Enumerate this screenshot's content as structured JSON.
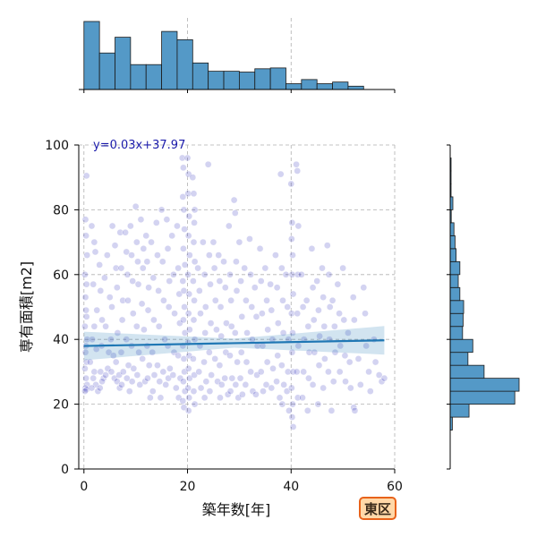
{
  "badge": {
    "text": "東区"
  },
  "colors": {
    "scatter": "#2222bb",
    "regression": "#1f77b4",
    "hist_fill": "#5499c7",
    "hist_edge": "#1a1a1a",
    "grid": "#b0b0b0",
    "badge_border": "#e8621a",
    "badge_fill": "#ffd8a8"
  },
  "chart_data": {
    "type": "scatter",
    "title": "",
    "xlabel": "築年数[年]",
    "ylabel": "専有面積[m2]",
    "xlim": [
      -1,
      60
    ],
    "ylim": [
      0,
      100
    ],
    "xticks": [
      0,
      20,
      40,
      60
    ],
    "yticks": [
      0,
      20,
      40,
      60,
      80,
      100
    ],
    "grid": true,
    "regression": {
      "label": "y=0.03x+37.97",
      "slope": 0.03,
      "intercept": 37.97,
      "x_range": [
        0,
        58
      ]
    },
    "x_hist": {
      "bin_edges": [
        0,
        3,
        6,
        9,
        12,
        15,
        18,
        21,
        24,
        27,
        30,
        33,
        36,
        39,
        42,
        45,
        48,
        51,
        54,
        57,
        60
      ],
      "counts": [
        82,
        44,
        63,
        30,
        30,
        70,
        60,
        32,
        22,
        22,
        21,
        25,
        26,
        7,
        12,
        7,
        9,
        4,
        0,
        0
      ]
    },
    "y_hist": {
      "bin_edges": [
        12,
        16,
        20,
        24,
        28,
        32,
        36,
        40,
        44,
        48,
        52,
        56,
        60,
        64,
        68,
        72,
        76,
        80,
        84,
        88,
        92,
        96
      ],
      "counts": [
        4,
        35,
        120,
        128,
        63,
        33,
        42,
        23,
        24,
        25,
        18,
        15,
        18,
        11,
        9,
        7,
        2,
        5,
        1,
        1,
        1,
        1
      ]
    },
    "points": [
      [
        0.5,
        90.5
      ],
      [
        0.3,
        77
      ],
      [
        0.4,
        72
      ],
      [
        0.6,
        66
      ],
      [
        0.2,
        60
      ],
      [
        0.5,
        57
      ],
      [
        0.3,
        53
      ],
      [
        0.4,
        49
      ],
      [
        0.5,
        47
      ],
      [
        0.2,
        44
      ],
      [
        0.6,
        40
      ],
      [
        0.4,
        38
      ],
      [
        0.3,
        36
      ],
      [
        0.5,
        33
      ],
      [
        0.2,
        31
      ],
      [
        0.4,
        28
      ],
      [
        0.6,
        26
      ],
      [
        0.3,
        25
      ],
      [
        0.5,
        24.5
      ],
      [
        0.2,
        24
      ],
      [
        1.5,
        75
      ],
      [
        2,
        70
      ],
      [
        2.2,
        67
      ],
      [
        1.8,
        57
      ],
      [
        2.5,
        49
      ],
      [
        2,
        44
      ],
      [
        1.6,
        40
      ],
      [
        2.4,
        37
      ],
      [
        1.2,
        33
      ],
      [
        2,
        30
      ],
      [
        1.8,
        28
      ],
      [
        2.3,
        26
      ],
      [
        1.5,
        25
      ],
      [
        2.7,
        24
      ],
      [
        3,
        63
      ],
      [
        3.2,
        55
      ],
      [
        3.5,
        46
      ],
      [
        3.4,
        38
      ],
      [
        3.2,
        30
      ],
      [
        3.8,
        28
      ],
      [
        3.5,
        27
      ],
      [
        3.1,
        25
      ],
      [
        4.5,
        66
      ],
      [
        4,
        59
      ],
      [
        4.2,
        44
      ],
      [
        4.8,
        36
      ],
      [
        4.6,
        31
      ],
      [
        4.2,
        29
      ],
      [
        5.5,
        75
      ],
      [
        5,
        53
      ],
      [
        5.4,
        50
      ],
      [
        5.2,
        40
      ],
      [
        5.7,
        35
      ],
      [
        5.3,
        30
      ],
      [
        5.9,
        28
      ],
      [
        6,
        69
      ],
      [
        6.2,
        62
      ],
      [
        6.4,
        56
      ],
      [
        6.5,
        42
      ],
      [
        6.2,
        33
      ],
      [
        6.8,
        29
      ],
      [
        6.4,
        27
      ],
      [
        6.9,
        25
      ],
      [
        7,
        73
      ],
      [
        7.2,
        62
      ],
      [
        7.5,
        52
      ],
      [
        7.4,
        46
      ],
      [
        7.2,
        36
      ],
      [
        7.6,
        30
      ],
      [
        7.3,
        26
      ],
      [
        8,
        73
      ],
      [
        8.2,
        67
      ],
      [
        8.4,
        60
      ],
      [
        8.5,
        52
      ],
      [
        8.2,
        40
      ],
      [
        8.6,
        32
      ],
      [
        8.3,
        28
      ],
      [
        8.8,
        24
      ],
      [
        9,
        75
      ],
      [
        9.2,
        66
      ],
      [
        9.4,
        58
      ],
      [
        9.5,
        48
      ],
      [
        9.2,
        38
      ],
      [
        9.6,
        31
      ],
      [
        9.3,
        27
      ],
      [
        10,
        81
      ],
      [
        10.2,
        70
      ],
      [
        10.4,
        64
      ],
      [
        10.5,
        57
      ],
      [
        10.2,
        44
      ],
      [
        10.6,
        36
      ],
      [
        10.3,
        29
      ],
      [
        10.8,
        26
      ],
      [
        11,
        77
      ],
      [
        11.5,
        68
      ],
      [
        11.4,
        62
      ],
      [
        11.2,
        51
      ],
      [
        11.6,
        43
      ],
      [
        11.3,
        34
      ],
      [
        11.8,
        27
      ],
      [
        12,
        72
      ],
      [
        12.2,
        64
      ],
      [
        12.5,
        56
      ],
      [
        12.4,
        49
      ],
      [
        12.2,
        38
      ],
      [
        12.6,
        32
      ],
      [
        12.3,
        28
      ],
      [
        12.8,
        22
      ],
      [
        13,
        70
      ],
      [
        13.4,
        59
      ],
      [
        13.5,
        46
      ],
      [
        13.2,
        36
      ],
      [
        13.6,
        29
      ],
      [
        13.3,
        24
      ],
      [
        14,
        76
      ],
      [
        14.2,
        66
      ],
      [
        14.4,
        55
      ],
      [
        14.5,
        44
      ],
      [
        14.2,
        32
      ],
      [
        14.6,
        27
      ],
      [
        14.8,
        22
      ],
      [
        15,
        80
      ],
      [
        15.2,
        64
      ],
      [
        15.4,
        52
      ],
      [
        15.6,
        40
      ],
      [
        15.3,
        30
      ],
      [
        15.8,
        26
      ],
      [
        16,
        77
      ],
      [
        16.2,
        68
      ],
      [
        16.5,
        58
      ],
      [
        16.4,
        50
      ],
      [
        16.2,
        38
      ],
      [
        16.6,
        31
      ],
      [
        16.3,
        28
      ],
      [
        17,
        72
      ],
      [
        17.3,
        60
      ],
      [
        17.5,
        48
      ],
      [
        17.4,
        36
      ],
      [
        17.2,
        29
      ],
      [
        17.8,
        25
      ],
      [
        18,
        75
      ],
      [
        18.2,
        62
      ],
      [
        18.4,
        54
      ],
      [
        18.5,
        45
      ],
      [
        18.2,
        35
      ],
      [
        18.6,
        28
      ],
      [
        18.3,
        22
      ],
      [
        19,
        96
      ],
      [
        19.2,
        93
      ],
      [
        19.1,
        84
      ],
      [
        19.3,
        80
      ],
      [
        19.4,
        74
      ],
      [
        19.2,
        68
      ],
      [
        19.5,
        63
      ],
      [
        19.1,
        58
      ],
      [
        19.3,
        55
      ],
      [
        19.4,
        50
      ],
      [
        19.2,
        46
      ],
      [
        19.5,
        42
      ],
      [
        19.1,
        38
      ],
      [
        19.3,
        34
      ],
      [
        19.4,
        30
      ],
      [
        19.2,
        27
      ],
      [
        19.5,
        24
      ],
      [
        19.1,
        21
      ],
      [
        19.3,
        19
      ],
      [
        20,
        96
      ],
      [
        20.2,
        91
      ],
      [
        20.1,
        85
      ],
      [
        20.3,
        78
      ],
      [
        20.2,
        72
      ],
      [
        20.4,
        66
      ],
      [
        20.1,
        60
      ],
      [
        20.3,
        54
      ],
      [
        20.2,
        48
      ],
      [
        20.4,
        43
      ],
      [
        20.1,
        39
      ],
      [
        20.3,
        35
      ],
      [
        20.2,
        31
      ],
      [
        20.4,
        28
      ],
      [
        20.1,
        25
      ],
      [
        20.3,
        22
      ],
      [
        20.2,
        18
      ],
      [
        21,
        90
      ],
      [
        21.2,
        85
      ],
      [
        21.4,
        80
      ],
      [
        21.3,
        76
      ],
      [
        21.2,
        70
      ],
      [
        21.4,
        64
      ],
      [
        21.1,
        58
      ],
      [
        21.3,
        52
      ],
      [
        21.2,
        46
      ],
      [
        21.4,
        40
      ],
      [
        21.1,
        34
      ],
      [
        21.3,
        29
      ],
      [
        21.2,
        24
      ],
      [
        21.4,
        20
      ],
      [
        22,
        62
      ],
      [
        22.3,
        55
      ],
      [
        22.5,
        48
      ],
      [
        22.4,
        38
      ],
      [
        22.2,
        30
      ],
      [
        22.6,
        25
      ],
      [
        23,
        70
      ],
      [
        23.3,
        60
      ],
      [
        23.5,
        50
      ],
      [
        23.4,
        42
      ],
      [
        23.2,
        33
      ],
      [
        23.6,
        27
      ],
      [
        23.3,
        22
      ],
      [
        24,
        94
      ],
      [
        24.2,
        66
      ],
      [
        24.4,
        57
      ],
      [
        24.5,
        45
      ],
      [
        24.2,
        36
      ],
      [
        24.6,
        29
      ],
      [
        24.3,
        24
      ],
      [
        25,
        70
      ],
      [
        25.2,
        62
      ],
      [
        25.4,
        52
      ],
      [
        25.6,
        43
      ],
      [
        25.3,
        34
      ],
      [
        25.8,
        27
      ],
      [
        26,
        66
      ],
      [
        26.2,
        58
      ],
      [
        26.4,
        50
      ],
      [
        26.5,
        41
      ],
      [
        26.2,
        32
      ],
      [
        26.6,
        26
      ],
      [
        26.3,
        22
      ],
      [
        27,
        64
      ],
      [
        27.3,
        56
      ],
      [
        27.5,
        45
      ],
      [
        27.4,
        36
      ],
      [
        27.2,
        28
      ],
      [
        27.8,
        23
      ],
      [
        28,
        75
      ],
      [
        28.2,
        60
      ],
      [
        28.4,
        52
      ],
      [
        28.5,
        44
      ],
      [
        28.2,
        35
      ],
      [
        28.6,
        28
      ],
      [
        28.3,
        24
      ],
      [
        29,
        83
      ],
      [
        29.2,
        79
      ],
      [
        29.4,
        64
      ],
      [
        29.5,
        55
      ],
      [
        29.2,
        42
      ],
      [
        29.6,
        33
      ],
      [
        29.3,
        26
      ],
      [
        29.8,
        22
      ],
      [
        30,
        70
      ],
      [
        30.3,
        58
      ],
      [
        30.5,
        47
      ],
      [
        30.4,
        36
      ],
      [
        30.2,
        28
      ],
      [
        30.6,
        23
      ],
      [
        31,
        62
      ],
      [
        31.3,
        52
      ],
      [
        31.5,
        42
      ],
      [
        31.4,
        33
      ],
      [
        31.2,
        26
      ],
      [
        32,
        71
      ],
      [
        32.2,
        60
      ],
      [
        32.4,
        50
      ],
      [
        32.5,
        40
      ],
      [
        32.2,
        30
      ],
      [
        32.6,
        24
      ],
      [
        33,
        56
      ],
      [
        33.3,
        47
      ],
      [
        33.5,
        38
      ],
      [
        33.4,
        29
      ],
      [
        33.2,
        23
      ],
      [
        34,
        68
      ],
      [
        34.2,
        58
      ],
      [
        34.4,
        48
      ],
      [
        34.5,
        38
      ],
      [
        34.2,
        30
      ],
      [
        34.6,
        24
      ],
      [
        35,
        62
      ],
      [
        35.3,
        52
      ],
      [
        35.5,
        43
      ],
      [
        35.4,
        33
      ],
      [
        35.2,
        26
      ],
      [
        36,
        57
      ],
      [
        36.2,
        49
      ],
      [
        36.4,
        40
      ],
      [
        36.5,
        31
      ],
      [
        36.2,
        25
      ],
      [
        37,
        66
      ],
      [
        37.3,
        56
      ],
      [
        37.5,
        45
      ],
      [
        37.4,
        35
      ],
      [
        37.2,
        27
      ],
      [
        37.8,
        22
      ],
      [
        38,
        91
      ],
      [
        38.2,
        62
      ],
      [
        38.4,
        52
      ],
      [
        38.5,
        42
      ],
      [
        38.2,
        32
      ],
      [
        38.6,
        26
      ],
      [
        38.3,
        20
      ],
      [
        39,
        60
      ],
      [
        39.3,
        50
      ],
      [
        39.5,
        40
      ],
      [
        39.4,
        30
      ],
      [
        39.2,
        24
      ],
      [
        39.6,
        18
      ],
      [
        40,
        88
      ],
      [
        40.2,
        76
      ],
      [
        40.1,
        71
      ],
      [
        40.3,
        66
      ],
      [
        40.2,
        60
      ],
      [
        40.4,
        54
      ],
      [
        40.1,
        48
      ],
      [
        40.3,
        42
      ],
      [
        40.2,
        36
      ],
      [
        40.4,
        30
      ],
      [
        40.1,
        25
      ],
      [
        40.3,
        20
      ],
      [
        40.2,
        16
      ],
      [
        40.4,
        13
      ],
      [
        41,
        94
      ],
      [
        41.2,
        92
      ],
      [
        41.4,
        75
      ],
      [
        41.3,
        60
      ],
      [
        41.2,
        48
      ],
      [
        41.4,
        38
      ],
      [
        41.1,
        30
      ],
      [
        41.3,
        22
      ],
      [
        42,
        60
      ],
      [
        42.3,
        50
      ],
      [
        42.5,
        40
      ],
      [
        42.4,
        30
      ],
      [
        42.2,
        22
      ],
      [
        43,
        52
      ],
      [
        43.3,
        44
      ],
      [
        43.5,
        36
      ],
      [
        43.4,
        28
      ],
      [
        43.2,
        18
      ],
      [
        44,
        68
      ],
      [
        44.2,
        56
      ],
      [
        44.4,
        46
      ],
      [
        44.5,
        36
      ],
      [
        44.2,
        26
      ],
      [
        45,
        58
      ],
      [
        45.3,
        49
      ],
      [
        45.5,
        41
      ],
      [
        45.4,
        32
      ],
      [
        45.2,
        20
      ],
      [
        46,
        62
      ],
      [
        46.2,
        53
      ],
      [
        46.4,
        44
      ],
      [
        46.5,
        34
      ],
      [
        46.2,
        25
      ],
      [
        47,
        69
      ],
      [
        47.3,
        60
      ],
      [
        47.5,
        50
      ],
      [
        47.4,
        40
      ],
      [
        47.2,
        30
      ],
      [
        47.8,
        18
      ],
      [
        48,
        52
      ],
      [
        48.4,
        44
      ],
      [
        48.5,
        36
      ],
      [
        48.2,
        27
      ],
      [
        49,
        57
      ],
      [
        49.3,
        48
      ],
      [
        49.5,
        38
      ],
      [
        49.4,
        30
      ],
      [
        50,
        62
      ],
      [
        50.2,
        46
      ],
      [
        50.4,
        35
      ],
      [
        50.5,
        27
      ],
      [
        51,
        42
      ],
      [
        51.3,
        33
      ],
      [
        51.5,
        25
      ],
      [
        52,
        53
      ],
      [
        52.2,
        46
      ],
      [
        52.1,
        19
      ],
      [
        52.3,
        18
      ],
      [
        53,
        34
      ],
      [
        53.4,
        26
      ],
      [
        54,
        56
      ],
      [
        54.3,
        48
      ],
      [
        54.5,
        38
      ],
      [
        55,
        30
      ],
      [
        55.3,
        24
      ],
      [
        56,
        40
      ],
      [
        56.3,
        33
      ],
      [
        57,
        29
      ],
      [
        57.5,
        27
      ],
      [
        58,
        28
      ]
    ]
  }
}
